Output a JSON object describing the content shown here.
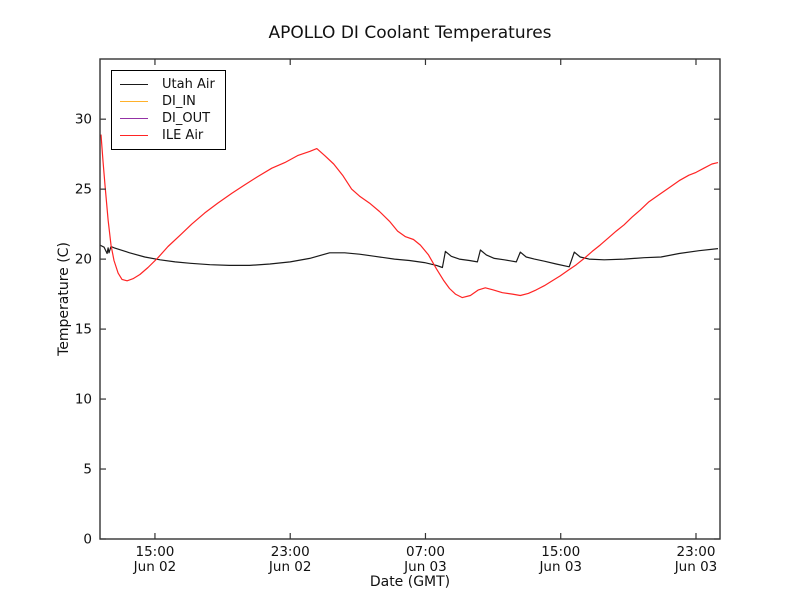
{
  "page": {
    "background": "#ffffff",
    "text_color": "#111111"
  },
  "chart_data": {
    "type": "line",
    "title": "APOLLO DI Coolant Temperatures",
    "xlabel": "Date (GMT)",
    "ylabel": "Temperature (C)",
    "x_unit": "hours since Jun 02 00:00 GMT",
    "x_range": [
      11.75,
      48.42
    ],
    "y_range": [
      0,
      34.3
    ],
    "y_ticks": [
      0,
      5,
      10,
      15,
      20,
      25,
      30
    ],
    "x_ticks": [
      {
        "hour": 15,
        "time": "15:00",
        "date": "Jun 02"
      },
      {
        "hour": 23,
        "time": "23:00",
        "date": "Jun 02"
      },
      {
        "hour": 31,
        "time": "07:00",
        "date": "Jun 03"
      },
      {
        "hour": 39,
        "time": "15:00",
        "date": "Jun 03"
      },
      {
        "hour": 47,
        "time": "23:00",
        "date": "Jun 03"
      }
    ],
    "grid": false,
    "legend_position": "upper left",
    "axis_color": "#333333",
    "series": [
      {
        "name": "Utah Air",
        "color": "#1a1a1a",
        "points": [
          [
            11.75,
            21.0
          ],
          [
            11.99,
            20.85
          ],
          [
            12.17,
            20.4
          ],
          [
            12.23,
            20.8
          ],
          [
            12.28,
            20.45
          ],
          [
            12.4,
            20.9
          ],
          [
            12.6,
            20.8
          ],
          [
            13.5,
            20.45
          ],
          [
            14.4,
            20.15
          ],
          [
            15.3,
            19.95
          ],
          [
            16.2,
            19.8
          ],
          [
            17.1,
            19.7
          ],
          [
            18.25,
            19.6
          ],
          [
            19.4,
            19.55
          ],
          [
            20.6,
            19.55
          ],
          [
            21.8,
            19.65
          ],
          [
            23.0,
            19.8
          ],
          [
            24.15,
            20.05
          ],
          [
            25.33,
            20.45
          ],
          [
            26.22,
            20.45
          ],
          [
            27.1,
            20.35
          ],
          [
            28.0,
            20.2
          ],
          [
            29.17,
            20.0
          ],
          [
            30.05,
            19.9
          ],
          [
            30.94,
            19.75
          ],
          [
            31.65,
            19.55
          ],
          [
            32.0,
            19.4
          ],
          [
            32.18,
            20.55
          ],
          [
            32.53,
            20.2
          ],
          [
            33.0,
            20.0
          ],
          [
            33.6,
            19.9
          ],
          [
            34.07,
            19.8
          ],
          [
            34.25,
            20.65
          ],
          [
            34.6,
            20.3
          ],
          [
            35.07,
            20.05
          ],
          [
            35.66,
            19.95
          ],
          [
            36.37,
            19.8
          ],
          [
            36.61,
            20.5
          ],
          [
            36.96,
            20.15
          ],
          [
            37.44,
            20.0
          ],
          [
            38.03,
            19.85
          ],
          [
            38.73,
            19.65
          ],
          [
            39.5,
            19.45
          ],
          [
            39.8,
            20.5
          ],
          [
            40.15,
            20.15
          ],
          [
            40.68,
            20.0
          ],
          [
            41.57,
            19.95
          ],
          [
            42.75,
            20.0
          ],
          [
            43.93,
            20.1
          ],
          [
            44.93,
            20.15
          ],
          [
            46.0,
            20.4
          ],
          [
            47.18,
            20.6
          ],
          [
            48.3,
            20.75
          ]
        ]
      },
      {
        "name": "DI_IN",
        "color": "#ffb12b",
        "points": []
      },
      {
        "name": "DI_OUT",
        "color": "#9331a5",
        "points": []
      },
      {
        "name": "ILE Air",
        "color": "#ff2424",
        "points": [
          [
            11.81,
            28.9
          ],
          [
            11.93,
            27.0
          ],
          [
            12.05,
            25.2
          ],
          [
            12.23,
            22.8
          ],
          [
            12.4,
            21.0
          ],
          [
            12.58,
            19.9
          ],
          [
            12.82,
            19.0
          ],
          [
            13.05,
            18.55
          ],
          [
            13.35,
            18.45
          ],
          [
            13.7,
            18.6
          ],
          [
            14.11,
            18.9
          ],
          [
            14.59,
            19.4
          ],
          [
            15.18,
            20.1
          ],
          [
            15.77,
            20.9
          ],
          [
            16.48,
            21.7
          ],
          [
            17.18,
            22.5
          ],
          [
            17.95,
            23.3
          ],
          [
            18.72,
            24.0
          ],
          [
            19.55,
            24.7
          ],
          [
            20.31,
            25.3
          ],
          [
            21.08,
            25.9
          ],
          [
            21.91,
            26.5
          ],
          [
            22.68,
            26.9
          ],
          [
            23.44,
            27.4
          ],
          [
            24.15,
            27.7
          ],
          [
            24.57,
            27.9
          ],
          [
            25.04,
            27.4
          ],
          [
            25.57,
            26.8
          ],
          [
            26.1,
            26.0
          ],
          [
            26.63,
            25.0
          ],
          [
            27.1,
            24.5
          ],
          [
            27.69,
            24.0
          ],
          [
            28.28,
            23.4
          ],
          [
            28.87,
            22.7
          ],
          [
            29.35,
            22.0
          ],
          [
            29.82,
            21.6
          ],
          [
            30.29,
            21.4
          ],
          [
            30.7,
            21.0
          ],
          [
            31.18,
            20.3
          ],
          [
            31.65,
            19.3
          ],
          [
            32.06,
            18.5
          ],
          [
            32.42,
            17.9
          ],
          [
            32.77,
            17.5
          ],
          [
            33.18,
            17.25
          ],
          [
            33.66,
            17.4
          ],
          [
            34.13,
            17.8
          ],
          [
            34.54,
            17.95
          ],
          [
            35.01,
            17.8
          ],
          [
            35.55,
            17.6
          ],
          [
            36.14,
            17.5
          ],
          [
            36.61,
            17.4
          ],
          [
            37.08,
            17.55
          ],
          [
            37.55,
            17.8
          ],
          [
            38.03,
            18.1
          ],
          [
            38.5,
            18.45
          ],
          [
            38.97,
            18.8
          ],
          [
            39.44,
            19.2
          ],
          [
            39.92,
            19.6
          ],
          [
            40.39,
            20.05
          ],
          [
            40.86,
            20.55
          ],
          [
            41.33,
            21.0
          ],
          [
            41.81,
            21.5
          ],
          [
            42.28,
            22.0
          ],
          [
            42.75,
            22.45
          ],
          [
            43.22,
            23.0
          ],
          [
            43.7,
            23.5
          ],
          [
            44.22,
            24.1
          ],
          [
            44.81,
            24.6
          ],
          [
            45.41,
            25.1
          ],
          [
            46.0,
            25.6
          ],
          [
            46.58,
            26.0
          ],
          [
            47.0,
            26.2
          ],
          [
            47.47,
            26.5
          ],
          [
            47.94,
            26.8
          ],
          [
            48.3,
            26.9
          ]
        ]
      }
    ]
  }
}
